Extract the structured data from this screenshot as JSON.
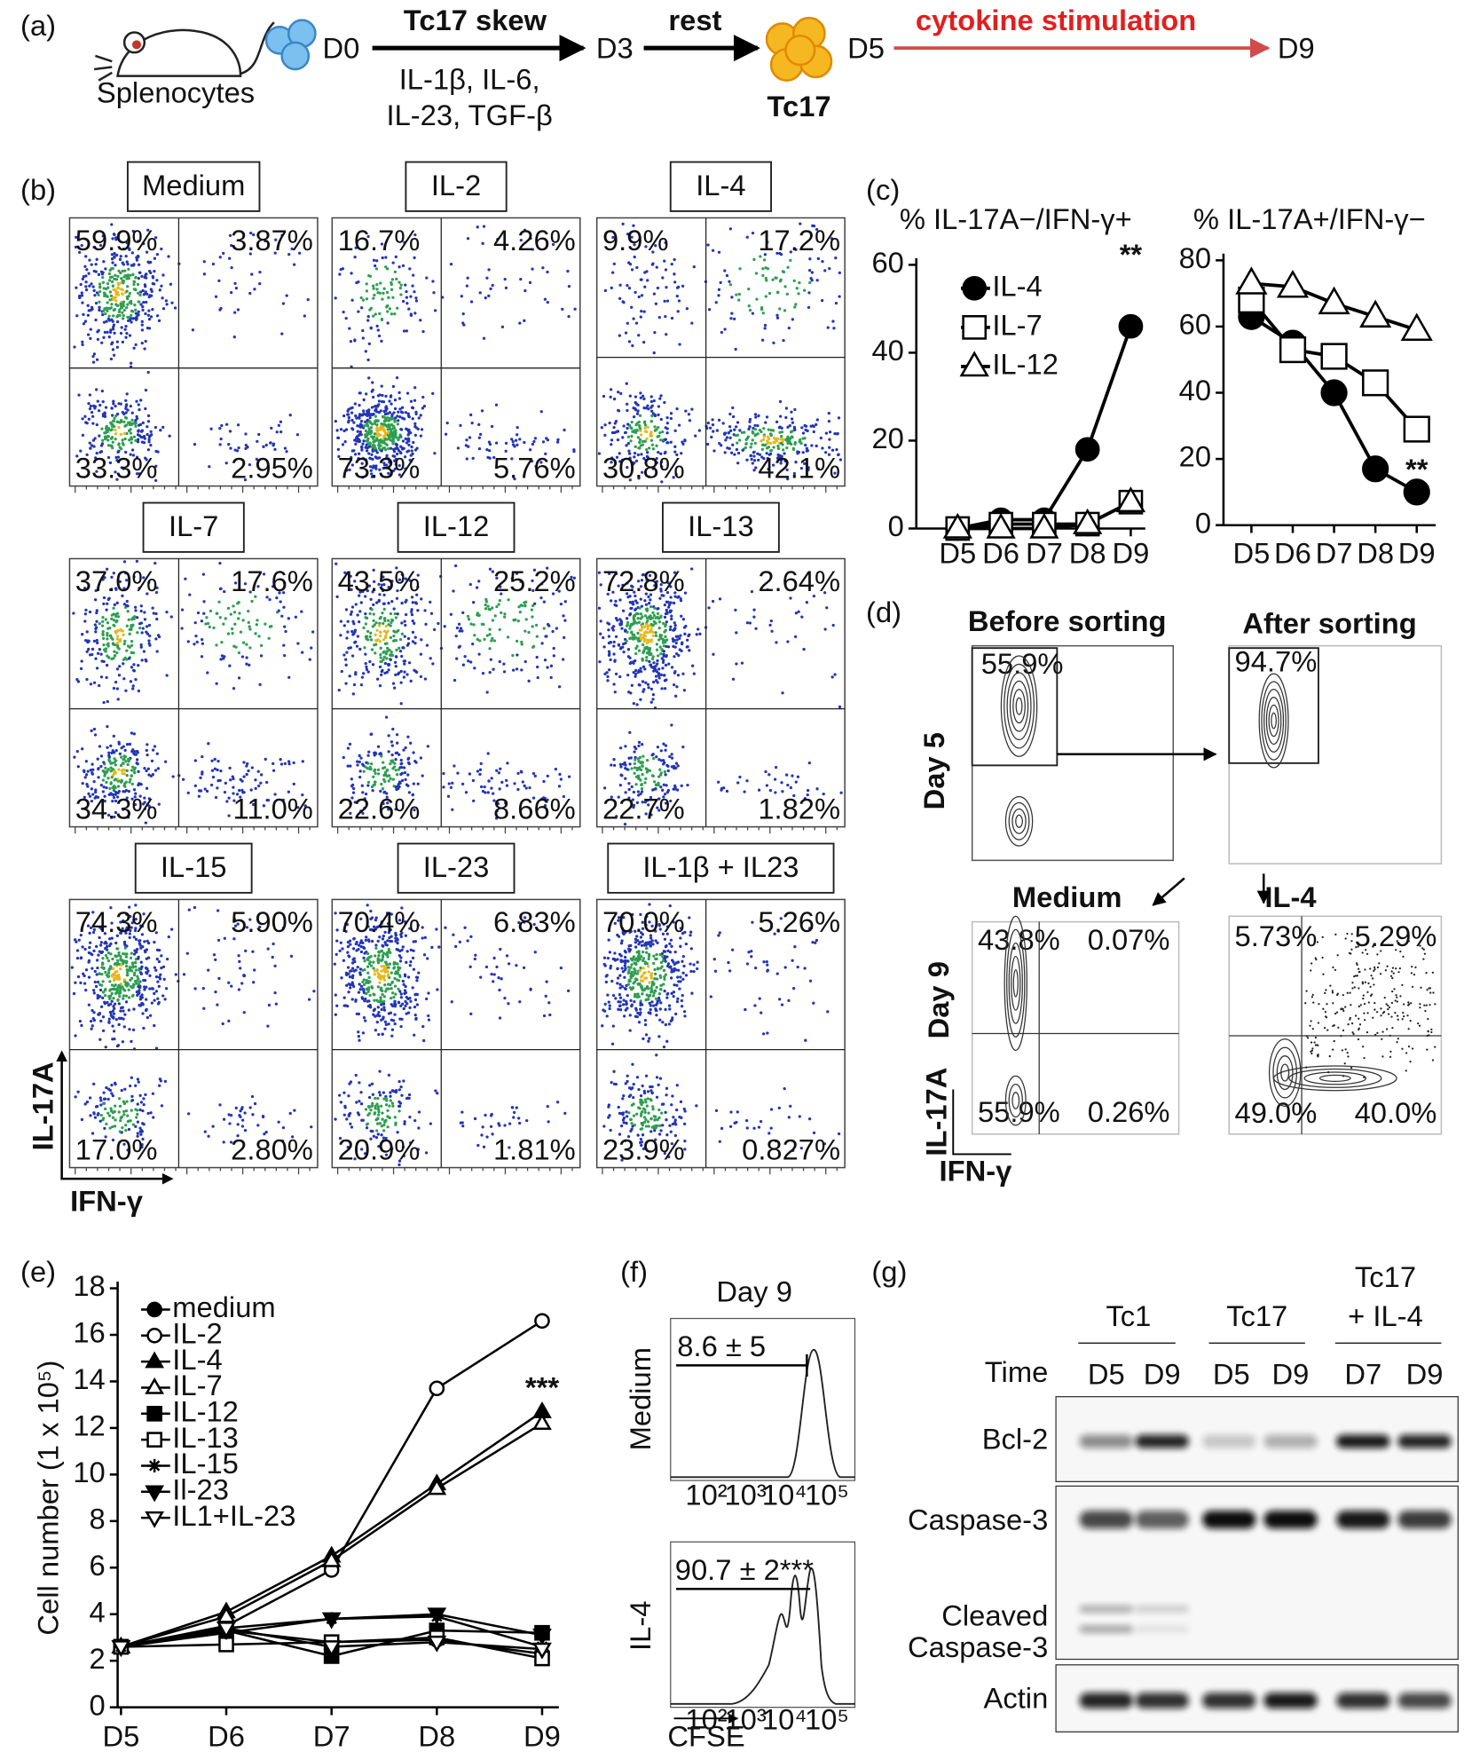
{
  "panel_labels": [
    "(a)",
    "(b)",
    "(c)",
    "(d)",
    "(e)",
    "(f)",
    "(g)"
  ],
  "schematic": {
    "cells": "Splenocytes",
    "d0": "D0",
    "step1": "Tc17 skew",
    "step1_cytokines": [
      "IL-1β, IL-6,",
      "IL-23, TGF-β"
    ],
    "d3": "D3",
    "step2": "rest",
    "product": "Tc17",
    "d5": "D5",
    "step3": "cytokine stimulation",
    "d9": "D9"
  },
  "flow_panel": {
    "y_label": "IL-17A",
    "x_label": "IFN-γ",
    "plots": [
      {
        "title": "Medium",
        "quadrants": [
          "59.9%",
          "3.87%",
          "33.3%",
          "2.95%"
        ]
      },
      {
        "title": "IL-2",
        "quadrants": [
          "16.7%",
          "4.26%",
          "73.3%",
          "5.76%"
        ]
      },
      {
        "title": "IL-4",
        "quadrants": [
          "9.9%",
          "17.2%",
          "30.8%",
          "42.1%"
        ]
      },
      {
        "title": "IL-7",
        "quadrants": [
          "37.0%",
          "17.6%",
          "34.3%",
          "11.0%"
        ]
      },
      {
        "title": "IL-12",
        "quadrants": [
          "43.5%",
          "25.2%",
          "22.6%",
          "8.66%"
        ]
      },
      {
        "title": "IL-13",
        "quadrants": [
          "72.8%",
          "2.64%",
          "22.7%",
          "1.82%"
        ]
      },
      {
        "title": "IL-15",
        "quadrants": [
          "74.3%",
          "5.90%",
          "17.0%",
          "2.80%"
        ]
      },
      {
        "title": "IL-23",
        "quadrants": [
          "70.4%",
          "6.83%",
          "20.9%",
          "1.81%"
        ]
      },
      {
        "title": "IL-1β + IL23",
        "quadrants": [
          "70.0%",
          "5.26%",
          "23.9%",
          "0.827%"
        ]
      }
    ]
  },
  "chart_data": [
    {
      "type": "line",
      "title": "% IL-17A−/IFN-γ+",
      "categories": [
        "D5",
        "D6",
        "D7",
        "D8",
        "D9"
      ],
      "series": [
        {
          "name": "IL-4",
          "color": "#000000",
          "marker": "circle",
          "filled": true,
          "values": [
            0,
            2,
            2,
            18,
            46
          ]
        },
        {
          "name": "IL-7",
          "color": "#000000",
          "marker": "square",
          "filled": false,
          "values": [
            0,
            1,
            1,
            1,
            6
          ]
        },
        {
          "name": "IL-12",
          "color": "#000000",
          "marker": "triangle",
          "filled": false,
          "values": [
            0,
            0,
            0,
            1,
            6
          ]
        }
      ],
      "ylim": [
        0,
        60
      ],
      "yticks": [
        0,
        20,
        40,
        60
      ],
      "annotations": [
        "**"
      ],
      "legend": "upper left"
    },
    {
      "type": "line",
      "title": "% IL-17A+/IFN-γ−",
      "categories": [
        "D5",
        "D6",
        "D7",
        "D8",
        "D9"
      ],
      "series": [
        {
          "color": "#000000",
          "marker": "circle",
          "filled": true,
          "values": [
            63,
            55,
            40,
            17,
            10
          ]
        },
        {
          "color": "#000000",
          "marker": "square",
          "filled": false,
          "values": [
            68,
            53,
            51,
            43,
            29
          ]
        },
        {
          "color": "#000000",
          "marker": "triangle",
          "filled": false,
          "values": [
            73,
            72,
            67,
            63,
            59
          ]
        }
      ],
      "ylim": [
        0,
        80
      ],
      "yticks": [
        0,
        20,
        40,
        60,
        80
      ],
      "annotations": [
        "**"
      ]
    },
    {
      "type": "line",
      "y_label": "Cell number (1 x 10⁵)",
      "categories": [
        "D5",
        "D6",
        "D7",
        "D8",
        "D9"
      ],
      "series": [
        {
          "name": "medium",
          "color": "#000000",
          "marker": "circle",
          "filled": true,
          "values": [
            2.6,
            3.3,
            2.8,
            2.9,
            2.3
          ]
        },
        {
          "name": "IL-2",
          "color": "#000000",
          "marker": "circle",
          "filled": false,
          "values": [
            2.6,
            3.5,
            5.9,
            13.7,
            16.6
          ]
        },
        {
          "name": "IL-4",
          "color": "#000000",
          "marker": "triangle",
          "filled": true,
          "values": [
            2.6,
            4.1,
            6.5,
            9.6,
            12.7
          ]
        },
        {
          "name": "IL-7",
          "color": "#000000",
          "marker": "triangle",
          "filled": false,
          "values": [
            2.6,
            3.9,
            6.3,
            9.4,
            12.2
          ]
        },
        {
          "name": "IL-12",
          "color": "#000000",
          "marker": "square",
          "filled": true,
          "values": [
            2.6,
            3.3,
            2.2,
            3.3,
            3.2
          ]
        },
        {
          "name": "IL-13",
          "color": "#000000",
          "marker": "square",
          "filled": false,
          "values": [
            2.6,
            2.7,
            2.8,
            3.0,
            2.1
          ]
        },
        {
          "name": "IL-15",
          "color": "#000000",
          "marker": "star",
          "filled": false,
          "values": [
            2.6,
            3.2,
            3.8,
            3.9,
            2.6
          ]
        },
        {
          "name": "Il-23",
          "color": "#000000",
          "marker": "triangle-down",
          "filled": true,
          "values": [
            2.6,
            3.4,
            3.8,
            4.0,
            3.1
          ]
        },
        {
          "name": "IL1+IL-23",
          "color": "#000000",
          "marker": "triangle-down",
          "filled": false,
          "values": [
            2.6,
            3.4,
            2.6,
            2.8,
            2.5
          ]
        }
      ],
      "ylim": [
        0,
        18
      ],
      "yticks": [
        0,
        2,
        4,
        6,
        8,
        10,
        12,
        14,
        16,
        18
      ],
      "annotations": [
        "***"
      ],
      "legend": "upper left"
    }
  ],
  "sorting": {
    "before": "Before sorting",
    "after": "After sorting",
    "day5": "Day 5",
    "day9": "Day 9",
    "gate_before": "55.9%",
    "gate_after": "94.7%",
    "medium": {
      "title": "Medium",
      "quadrants": [
        "43.8%",
        "0.07%",
        "55.9%",
        "0.26%"
      ]
    },
    "il4": {
      "title": "IL-4",
      "quadrants": [
        "5.73%",
        "5.29%",
        "49.0%",
        "40.0%"
      ]
    },
    "y_label": "IL-17A",
    "x_label": "IFN-γ"
  },
  "cfse": {
    "title": "Day 9",
    "rows": [
      {
        "label": "Medium",
        "value": "8.6 ± 5"
      },
      {
        "label": "IL-4",
        "value": "90.7 ± 2***"
      }
    ],
    "ticks": [
      "10²",
      "10³",
      "10⁴",
      "10⁵"
    ],
    "x_label": "CFSE"
  },
  "blot": {
    "groups": [
      [
        "Tc1"
      ],
      [
        "Tc17"
      ],
      [
        "Tc17",
        "+ IL-4"
      ]
    ],
    "time_label": "Time",
    "lanes": [
      "D5",
      "D9",
      "D5",
      "D9",
      "D7",
      "D9"
    ],
    "proteins": [
      [
        "Bcl-2"
      ],
      [
        "Caspase-3"
      ],
      [
        "Cleaved",
        "Caspase-3"
      ],
      [
        "Actin"
      ]
    ]
  }
}
